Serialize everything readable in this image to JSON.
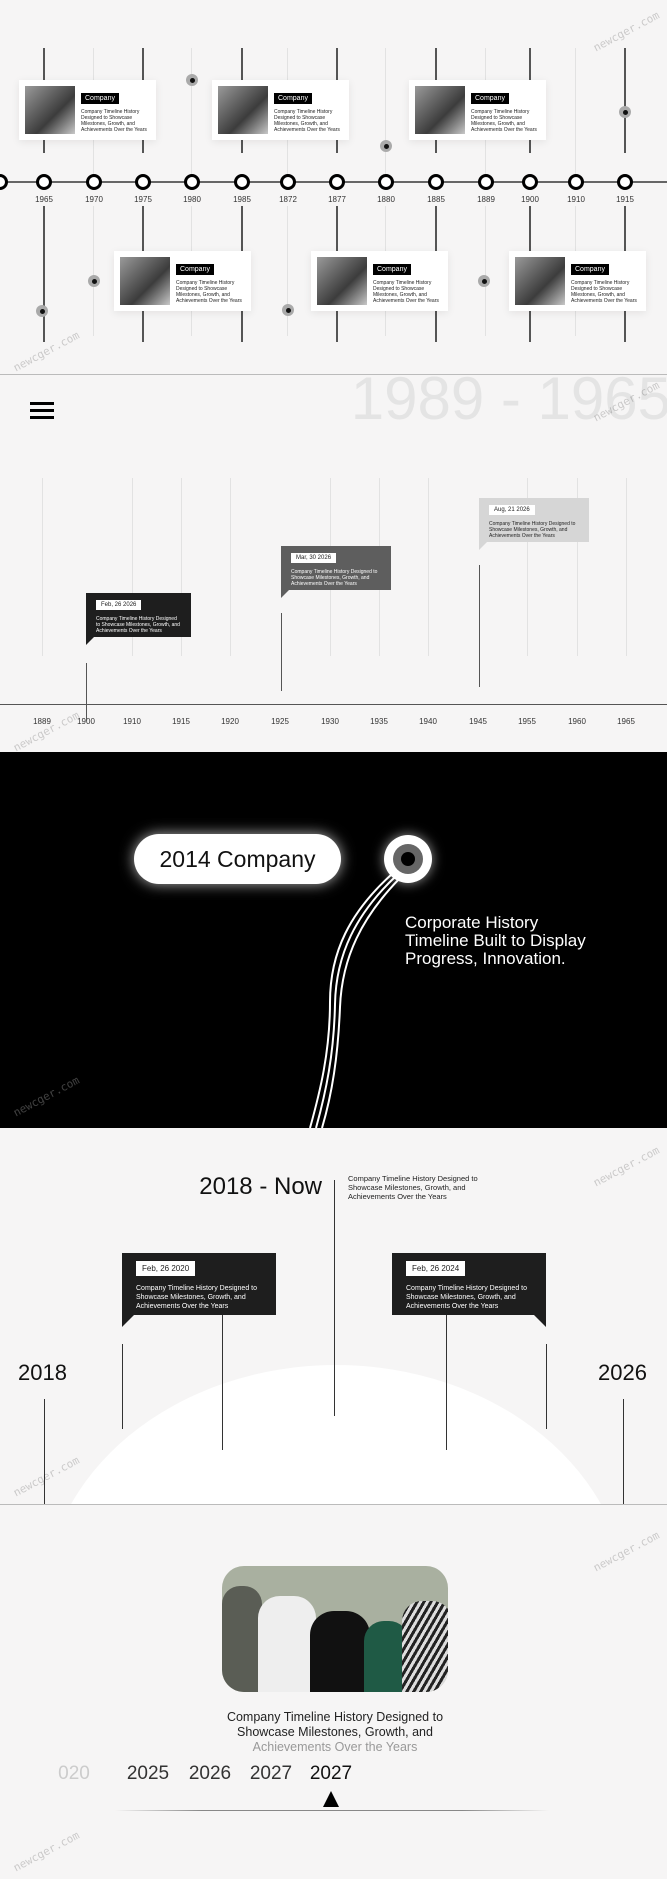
{
  "watermark": "newcger.com",
  "section1": {
    "years": [
      "1965",
      "1970",
      "1975",
      "1980",
      "1985",
      "1872",
      "1877",
      "1880",
      "1885",
      "1889",
      "1900",
      "1910",
      "1915"
    ],
    "cards": [
      {
        "tag": "Company",
        "text": "Company Timeline History Designed to Showcase Milestones, Growth, and Achievements Over the Years"
      },
      {
        "tag": "Company",
        "text": "Company Timeline History Designed to Showcase Milestones, Growth, and Achievements Over the Years"
      },
      {
        "tag": "Company",
        "text": "Company Timeline History Designed to Showcase Milestones, Growth, and Achievements Over the Years"
      },
      {
        "tag": "Company",
        "text": "Company Timeline History Designed to Showcase Milestones, Growth, and Achievements Over the Years"
      },
      {
        "tag": "Company",
        "text": "Company Timeline History Designed to Showcase Milestones, Growth, and Achievements Over the Years"
      },
      {
        "tag": "Company",
        "text": "Company Timeline History Designed to Showcase Milestones, Growth, and Achievements Over the Years"
      }
    ]
  },
  "section2": {
    "menu_icon": "hamburger-icon",
    "range_title": "1989 - 1965",
    "years": [
      "1889",
      "1900",
      "1910",
      "1915",
      "1920",
      "1925",
      "1930",
      "1935",
      "1940",
      "1945",
      "1955",
      "1960",
      "1965"
    ],
    "callouts": [
      {
        "date": "Feb, 26 2026",
        "text": "Company Timeline History Designed to Showcase Milestones, Growth, and Achievements Over the Years",
        "color": "#1e1e1e"
      },
      {
        "date": "Mar, 30 2026",
        "text": "Company Timeline History Designed to Showcase Milestones, Growth, and Achievements Over the Years",
        "color": "#5e5e5e"
      },
      {
        "date": "Aug, 21 2026",
        "text": "Company Timeline History Designed to Showcase Milestones, Growth, and Achievements Over the Years",
        "color": "#d6d6d6"
      }
    ]
  },
  "section3": {
    "pill": "2014 Company",
    "text": "Corporate History Timeline Built to Display Progress, Innovation."
  },
  "section4": {
    "title": "2018 - Now",
    "desc": "Company Timeline History Designed to Showcase Milestones, Growth, and Achievements Over the Years",
    "start_year": "2018",
    "end_year": "2026",
    "boxes": [
      {
        "date": "Feb, 26 2020",
        "text": "Company Timeline History Designed to Showcase Milestones, Growth, and Achievements Over the Years"
      },
      {
        "date": "Feb, 26 2024",
        "text": "Company Timeline History Designed to Showcase Milestones, Growth, and Achievements Over the Years"
      }
    ]
  },
  "section5": {
    "caption_dark": "Company Timeline History Designed to Showcase Milestones, Growth, and",
    "caption_light": "Achievements Over the Years",
    "years": [
      "020",
      "2025",
      "2026",
      "2027",
      "2027"
    ],
    "selected_index": 4
  }
}
